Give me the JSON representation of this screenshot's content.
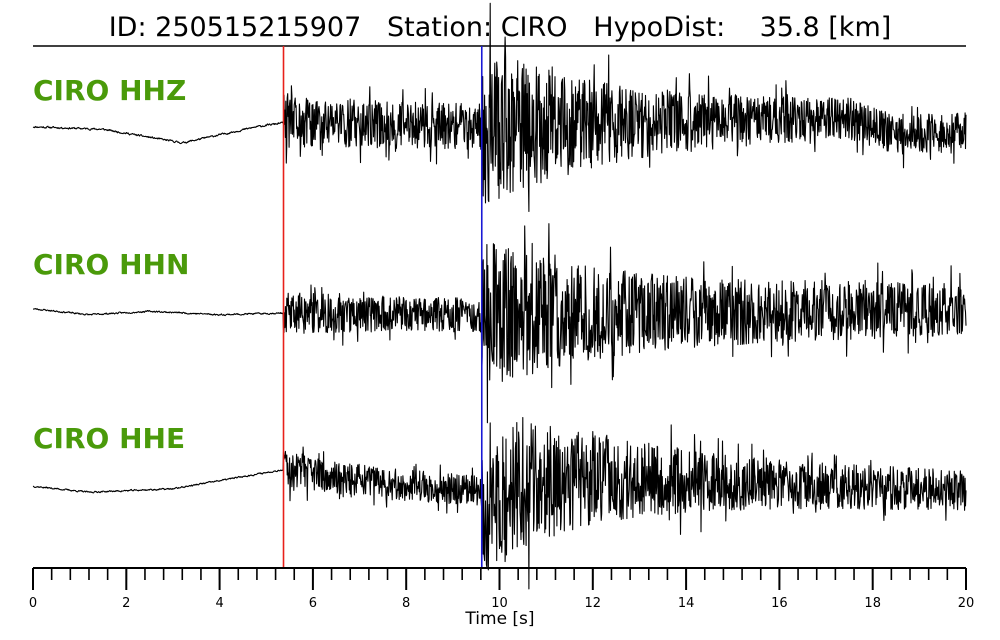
{
  "chart_data": {
    "type": "line",
    "title": "ID: 250515215907   Station: CIRO   HypoDist:    35.8 [km]",
    "xlabel": "Time [s]",
    "ylabel": "",
    "xlim": [
      0,
      20
    ],
    "x_major_ticks": [
      0,
      2,
      4,
      6,
      8,
      10,
      12,
      14,
      16,
      18,
      20
    ],
    "x_tick_labels": [
      "0",
      "2",
      "4",
      "6",
      "8",
      "10",
      "12",
      "14",
      "16",
      "18",
      "20"
    ],
    "x_minor_tick_step": 0.4,
    "grid": false,
    "legend": "none",
    "markers": [
      {
        "name": "P-arrival",
        "x": 5.37,
        "color": "#e8201a"
      },
      {
        "name": "S-arrival",
        "x": 9.62,
        "color": "#1a1ad6"
      }
    ],
    "series": [
      {
        "name": "CIRO HHZ",
        "color": "#000000",
        "label_color": "#4a9a0a",
        "pre_noise": 0.06,
        "p_amp": 0.33,
        "s_peak": 0.95,
        "coda": 0.2,
        "drift": [
          [
            0,
            0.05
          ],
          [
            1.5,
            0.02
          ],
          [
            3.2,
            -0.14
          ],
          [
            4.8,
            0.05
          ],
          [
            5.4,
            0.1
          ],
          [
            9.6,
            0.05
          ],
          [
            17.5,
            0.15
          ],
          [
            18.5,
            -0.05
          ],
          [
            20,
            0.0
          ]
        ],
        "seed": 11
      },
      {
        "name": "CIRO HHN",
        "color": "#000000",
        "label_color": "#4a9a0a",
        "pre_noise": 0.05,
        "p_amp": 0.25,
        "s_peak": 0.9,
        "coda": 0.3,
        "drift": [
          [
            0,
            0.05
          ],
          [
            1.2,
            -0.02
          ],
          [
            2.5,
            0.02
          ],
          [
            4.0,
            -0.02
          ],
          [
            5.4,
            0.0
          ],
          [
            9.6,
            -0.02
          ],
          [
            20,
            0.04
          ]
        ],
        "seed": 23
      },
      {
        "name": "CIRO HHE",
        "color": "#000000",
        "label_color": "#4a9a0a",
        "pre_noise": 0.05,
        "p_amp": 0.22,
        "s_peak": 1.0,
        "coda": 0.22,
        "drift": [
          [
            0,
            -0.05
          ],
          [
            1.2,
            -0.12
          ],
          [
            3.0,
            -0.08
          ],
          [
            5.4,
            0.15
          ],
          [
            7.5,
            -0.02
          ],
          [
            9.6,
            -0.1
          ],
          [
            12,
            0.05
          ],
          [
            20,
            -0.1
          ]
        ],
        "seed": 37
      }
    ]
  }
}
